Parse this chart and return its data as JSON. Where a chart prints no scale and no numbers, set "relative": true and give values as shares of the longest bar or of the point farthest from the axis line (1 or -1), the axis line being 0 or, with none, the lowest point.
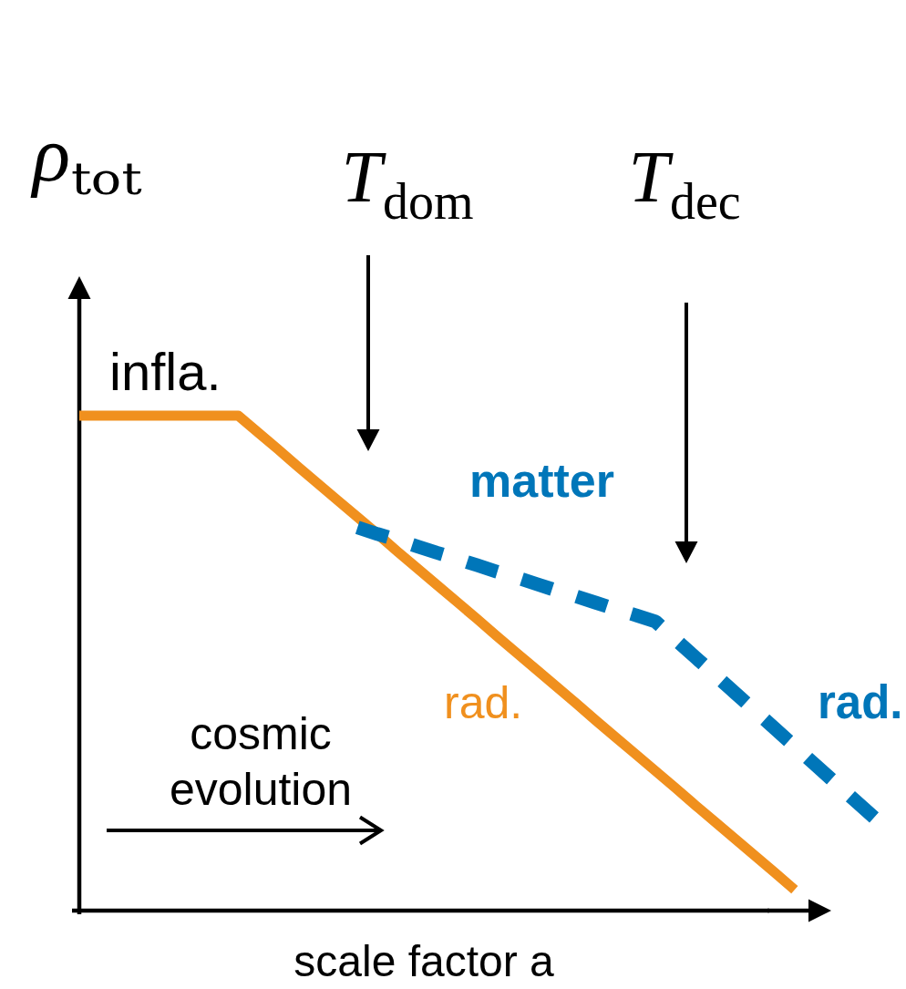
{
  "chart_data": {
    "type": "line",
    "relative": true,
    "ylabel": "ρₜₒₜ",
    "xlabel": "scale factor a",
    "categories": [
      null,
      null,
      null,
      null,
      null,
      null,
      null,
      null,
      null,
      null,
      null,
      null,
      null,
      null,
      null,
      null,
      null,
      null,
      null,
      null,
      null,
      null,
      null,
      null,
      null,
      null,
      null,
      null,
      null,
      null,
      null,
      null,
      null,
      null,
      null,
      null,
      null,
      null,
      null,
      null,
      null
    ],
    "series": [
      {
        "name": "rad.",
        "color": "#f0901e",
        "line_style": "solid",
        "values": [
          1,
          1,
          1,
          1,
          1,
          1,
          1,
          1,
          1,
          0.966,
          0.932,
          0.897,
          0.863,
          0.829,
          0.795,
          0.761,
          0.726,
          0.692,
          0.658,
          0.624,
          0.59,
          0.555,
          0.521,
          0.487,
          0.453,
          0.419,
          0.384,
          0.35,
          0.316,
          0.282,
          0.248,
          0.213,
          0.179,
          0.145,
          0.111,
          0.077,
          0.042,
          null,
          null,
          null,
          null
        ]
      },
      {
        "color": "#0076b9",
        "line_style": "dashed",
        "values": [
          null,
          null,
          null,
          null,
          null,
          null,
          null,
          null,
          null,
          null,
          null,
          null,
          null,
          null,
          0.774,
          0.761,
          0.749,
          0.736,
          0.723,
          0.711,
          0.698,
          0.685,
          0.673,
          0.66,
          0.647,
          0.635,
          0.622,
          0.609,
          0.597,
          0.584,
          0.548,
          0.512,
          0.476,
          0.44,
          0.404,
          0.368,
          0.332,
          0.296,
          0.26,
          0.224,
          0.188
        ]
      }
    ],
    "annotations": [
      "infla.",
      "T$_{dom}$",
      "T$_{dec}$",
      "cosmic evolution",
      "matter",
      "rad."
    ]
  }
}
